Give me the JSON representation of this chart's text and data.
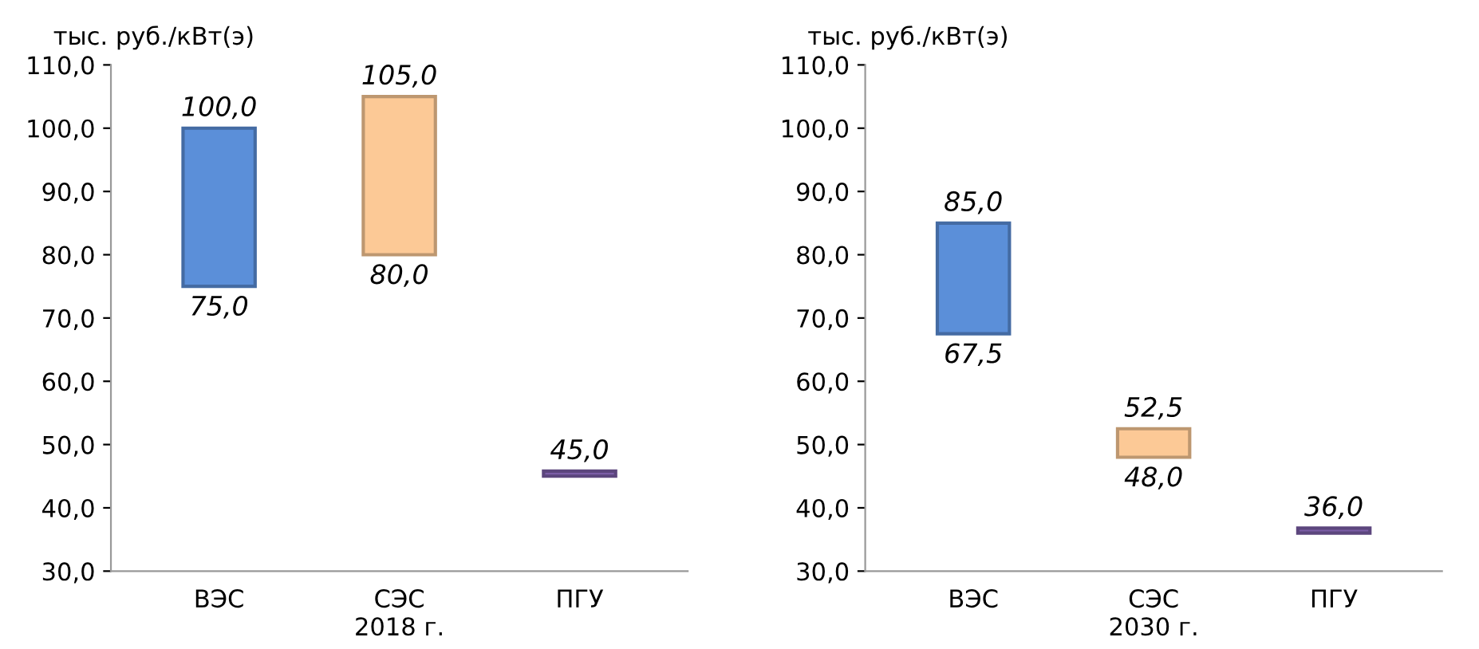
{
  "chart_data": [
    {
      "type": "bar",
      "ylabel": "тыс. руб./кВт(э)",
      "xlabel": "2018 г.",
      "categories": [
        "ВЭС",
        "СЭС",
        "ПГУ"
      ],
      "base": [
        75,
        80,
        45
      ],
      "values": [
        25,
        25,
        0.8
      ],
      "colors": [
        "#5b8fd9",
        "#fcc996",
        "#7b5ea7"
      ],
      "ylim": [
        30,
        110
      ],
      "yticks": [
        {
          "value": 30,
          "label": "30,0"
        },
        {
          "value": 40,
          "label": "40,0"
        },
        {
          "value": 50,
          "label": "50,0"
        },
        {
          "value": 60,
          "label": "60,0"
        },
        {
          "value": 70,
          "label": "70,0"
        },
        {
          "value": 80,
          "label": "80,0"
        },
        {
          "value": 90,
          "label": "90,0"
        },
        {
          "value": 100,
          "label": "100,0"
        },
        {
          "value": 110,
          "label": "110,0"
        }
      ],
      "grid": false,
      "legend": false,
      "annotations": [
        {
          "text": "100,0",
          "x": "ВЭС",
          "y": 100
        },
        {
          "text": "75,0",
          "x": "ВЭС",
          "y": 75
        },
        {
          "text": "105,0",
          "x": "СЭС",
          "y": 105
        },
        {
          "text": "80,0",
          "x": "СЭС",
          "y": 80
        },
        {
          "text": "45,0",
          "x": "ПГУ",
          "y": 45.8
        }
      ]
    },
    {
      "type": "bar",
      "ylabel": "тыс. руб./кВт(э)",
      "xlabel": "2030 г.",
      "categories": [
        "ВЭС",
        "СЭС",
        "ПГУ"
      ],
      "base": [
        67.5,
        48,
        36
      ],
      "values": [
        17.5,
        4.5,
        0.8
      ],
      "colors": [
        "#5b8fd9",
        "#fcc996",
        "#7b5ea7"
      ],
      "ylim": [
        30,
        110
      ],
      "yticks": [
        {
          "value": 30,
          "label": "30,0"
        },
        {
          "value": 40,
          "label": "40,0"
        },
        {
          "value": 50,
          "label": "50,0"
        },
        {
          "value": 60,
          "label": "60,0"
        },
        {
          "value": 70,
          "label": "70,0"
        },
        {
          "value": 80,
          "label": "80,0"
        },
        {
          "value": 90,
          "label": "90,0"
        },
        {
          "value": 100,
          "label": "100,0"
        },
        {
          "value": 110,
          "label": "110,0"
        }
      ],
      "grid": false,
      "legend": false,
      "annotations": [
        {
          "text": "85,0",
          "x": "ВЭС",
          "y": 85
        },
        {
          "text": "67,5",
          "x": "ВЭС",
          "y": 67.5
        },
        {
          "text": "52,5",
          "x": "СЭС",
          "y": 52.5
        },
        {
          "text": "48,0",
          "x": "СЭС",
          "y": 48
        },
        {
          "text": "36,0",
          "x": "ПГУ",
          "y": 36.8
        }
      ]
    }
  ]
}
